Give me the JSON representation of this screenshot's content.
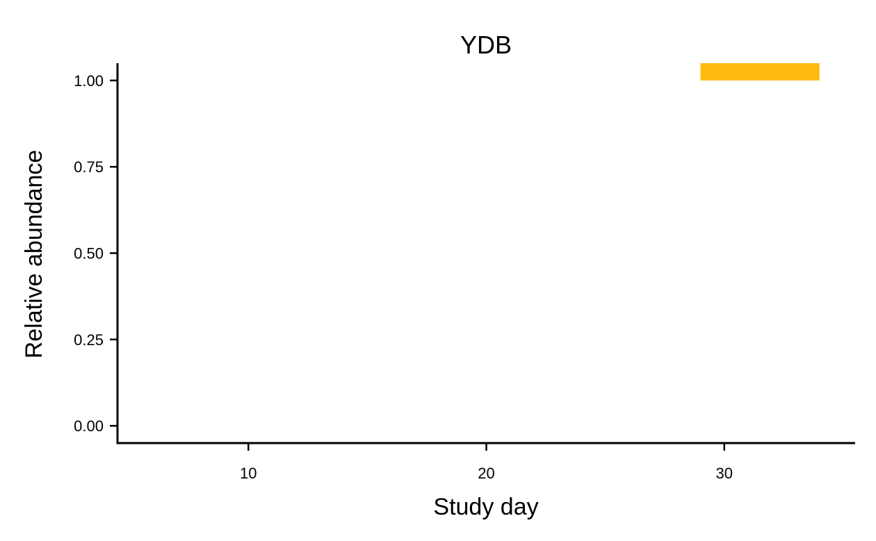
{
  "chart_data": {
    "type": "bar",
    "title": "YDB",
    "xlabel": "Study day",
    "ylabel": "Relative abundance",
    "xlim": [
      4.5,
      35.5
    ],
    "ylim": [
      -0.05,
      1.05
    ],
    "x_ticks": [
      10,
      20,
      30
    ],
    "x_tick_labels": [
      "10",
      "20",
      "30"
    ],
    "y_ticks": [
      0,
      0.25,
      0.5,
      0.75,
      1
    ],
    "y_tick_labels": [
      "0.00",
      "0.25",
      "0.50",
      "0.75",
      "1.00"
    ],
    "grid": false,
    "legend": "none",
    "bars": [
      {
        "x_start": 29,
        "x_end": 34,
        "y_bottom": 1.0,
        "y_top": 1.05,
        "color": "#FFB90F"
      }
    ]
  }
}
